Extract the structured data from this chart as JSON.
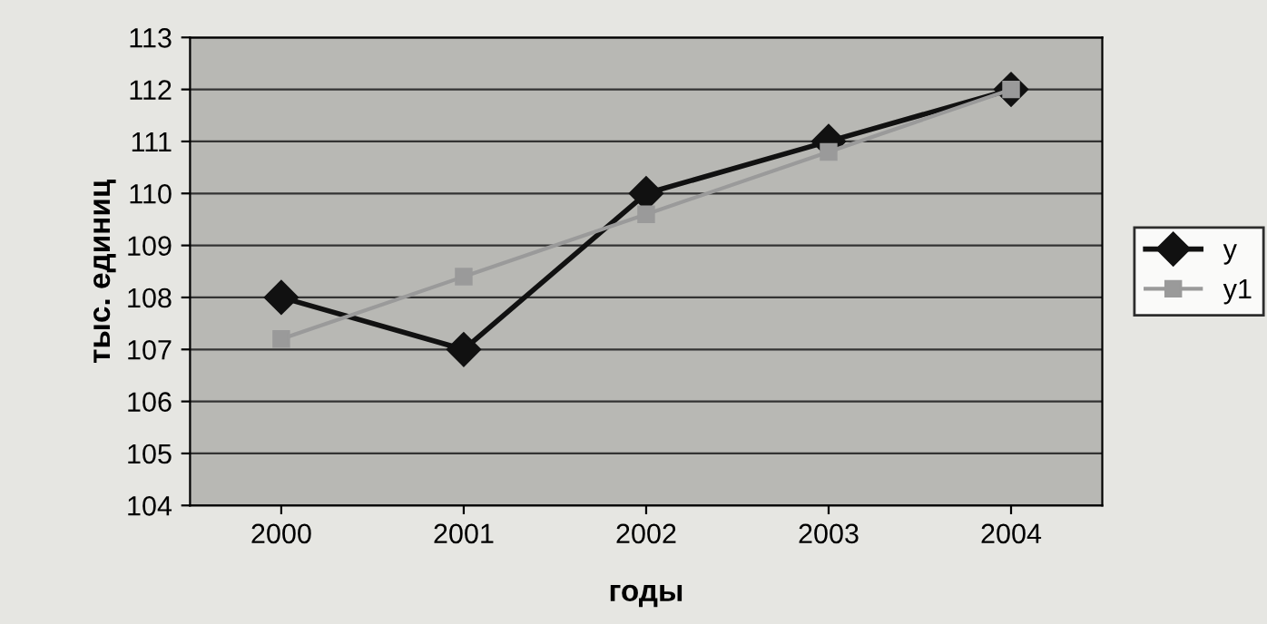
{
  "chart_data": {
    "type": "line",
    "xlabel": "годы",
    "ylabel": "тыс. единиц",
    "categories": [
      "2000",
      "2001",
      "2002",
      "2003",
      "2004"
    ],
    "series": [
      {
        "name": "y",
        "color": "#111111",
        "values": [
          108,
          107,
          110,
          111,
          112
        ],
        "marker": "diamond"
      },
      {
        "name": "y1",
        "color": "#9a9a9a",
        "values": [
          107.2,
          108.4,
          109.6,
          110.8,
          112
        ],
        "marker": "square"
      }
    ],
    "ylim": [
      104,
      113
    ],
    "yticks": [
      104,
      105,
      106,
      107,
      108,
      109,
      110,
      111,
      112,
      113
    ],
    "grid": "y",
    "legend": "right"
  }
}
